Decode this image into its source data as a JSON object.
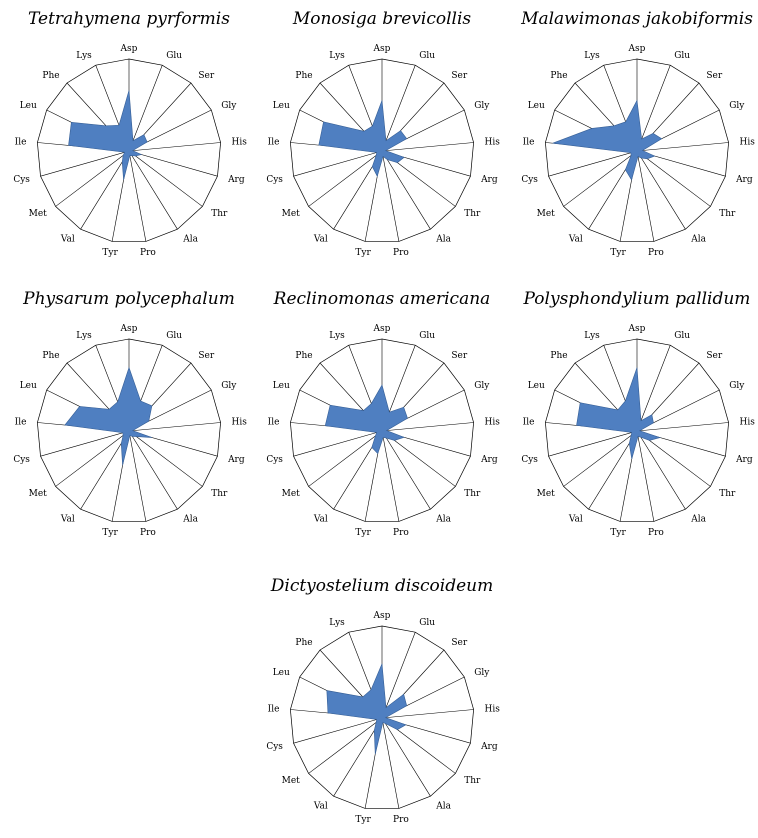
{
  "chart_data": {
    "type": "radar",
    "axes": [
      "Asp",
      "Glu",
      "Ser",
      "Gly",
      "His",
      "Arg",
      "Thr",
      "Ala",
      "Pro",
      "Tyr",
      "Val",
      "Met",
      "Cys",
      "Ile",
      "Leu",
      "Phe",
      "Lys"
    ],
    "rlim": [
      0,
      1
    ],
    "grid": true,
    "color": "#4f7fc1",
    "panels": [
      {
        "title": "Tetrahymena pyrformis",
        "values": [
          0.66,
          0.12,
          0.24,
          0.22,
          0.04,
          0.14,
          0.09,
          0.06,
          0.05,
          0.32,
          0.14,
          0.08,
          0.05,
          0.66,
          0.7,
          0.37,
          0.3
        ]
      },
      {
        "title": "Monosiga brevicollis",
        "values": [
          0.55,
          0.12,
          0.3,
          0.3,
          0.04,
          0.25,
          0.21,
          0.11,
          0.06,
          0.28,
          0.2,
          0.08,
          0.06,
          0.69,
          0.71,
          0.29,
          0.29
        ]
      },
      {
        "title": "Malawimonas jakobiformis",
        "values": [
          0.55,
          0.14,
          0.26,
          0.3,
          0.06,
          0.2,
          0.14,
          0.09,
          0.06,
          0.32,
          0.24,
          0.08,
          0.07,
          0.92,
          0.55,
          0.37,
          0.34
        ]
      },
      {
        "title": "Physarum polycephalum",
        "values": [
          0.69,
          0.35,
          0.37,
          0.24,
          0.04,
          0.26,
          0.1,
          0.07,
          0.05,
          0.38,
          0.16,
          0.08,
          0.07,
          0.7,
          0.6,
          0.32,
          0.34
        ]
      },
      {
        "title": "Reclinomonas americana",
        "values": [
          0.5,
          0.22,
          0.35,
          0.31,
          0.05,
          0.25,
          0.17,
          0.09,
          0.07,
          0.25,
          0.21,
          0.09,
          0.06,
          0.62,
          0.63,
          0.3,
          0.32
        ]
      },
      {
        "title": "Polysphondylium pallidum",
        "values": [
          0.69,
          0.12,
          0.24,
          0.2,
          0.03,
          0.26,
          0.17,
          0.08,
          0.06,
          0.31,
          0.16,
          0.08,
          0.06,
          0.66,
          0.69,
          0.31,
          0.35
        ]
      },
      {
        "title": "Dictyostelium discoideum",
        "values": [
          0.59,
          0.12,
          0.35,
          0.3,
          0.04,
          0.27,
          0.21,
          0.07,
          0.05,
          0.4,
          0.16,
          0.08,
          0.06,
          0.59,
          0.67,
          0.31,
          0.33
        ]
      }
    ]
  }
}
